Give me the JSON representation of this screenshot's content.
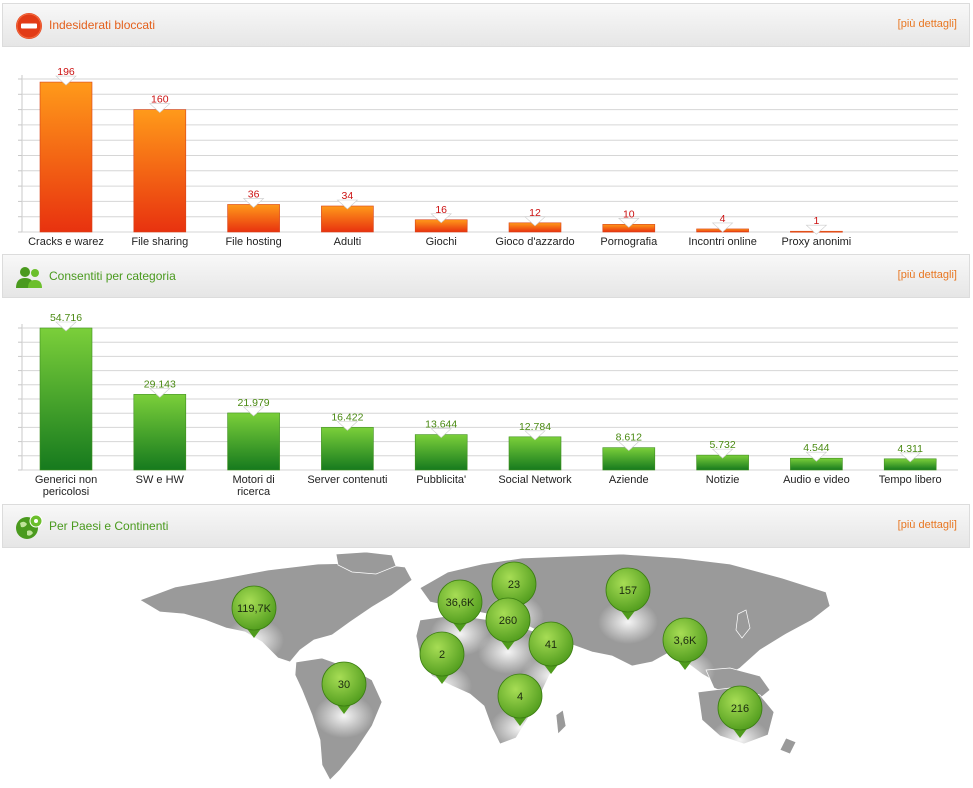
{
  "colors": {
    "orange": "#e4601c",
    "green": "#4a9a1e",
    "link": "#e87722",
    "pin": "#6cbf2c"
  },
  "sections": [
    {
      "id": "blocked",
      "title": "Indesiderati bloccati",
      "link": "[più dettagli]",
      "icon": "no-entry-icon",
      "chart_data": {
        "type": "bar",
        "title": "Indesiderati bloccati",
        "categories": [
          [
            "Cracks e warez"
          ],
          [
            "File sharing"
          ],
          [
            "File hosting"
          ],
          [
            "Adulti"
          ],
          [
            "Giochi"
          ],
          [
            "Gioco d'azzardo"
          ],
          [
            "Pornografia"
          ],
          [
            "Incontri online"
          ],
          [
            "Proxy anonimi"
          ]
        ],
        "values": [
          196,
          160,
          36,
          34,
          16,
          12,
          10,
          4,
          1
        ],
        "labels": [
          "196",
          "160",
          "36",
          "34",
          "16",
          "12",
          "10",
          "4",
          "1"
        ],
        "ylim": [
          0,
          200
        ],
        "grid": true,
        "color": "orange"
      }
    },
    {
      "id": "allowed",
      "title": "Consentiti per categoria",
      "link": "[più dettagli]",
      "icon": "users-icon",
      "chart_data": {
        "type": "bar",
        "title": "Consentiti per categoria",
        "categories": [
          [
            "Generici non",
            "pericolosi"
          ],
          [
            "SW e HW"
          ],
          [
            "Motori di",
            "ricerca"
          ],
          [
            "Server contenuti"
          ],
          [
            "Pubblicita'"
          ],
          [
            "Social Network"
          ],
          [
            "Aziende"
          ],
          [
            "Notizie"
          ],
          [
            "Audio e video"
          ],
          [
            "Tempo libero"
          ]
        ],
        "values": [
          54716,
          29143,
          21979,
          16422,
          13644,
          12784,
          8612,
          5732,
          4544,
          4311
        ],
        "labels": [
          "54.716",
          "29.143",
          "21.979",
          "16.422",
          "13.644",
          "12.784",
          "8.612",
          "5.732",
          "4.544",
          "4.311"
        ],
        "ylim": [
          0,
          54716
        ],
        "grid": true,
        "color": "green"
      }
    },
    {
      "id": "countries",
      "title": "Per Paesi e Continenti",
      "link": "[più dettagli]",
      "icon": "globe-pin-icon"
    }
  ],
  "map": {
    "pins": [
      "119,7K",
      "30",
      "36,6K",
      "23",
      "260",
      "2",
      "41",
      "4",
      "157",
      "3,6K",
      "216"
    ]
  }
}
